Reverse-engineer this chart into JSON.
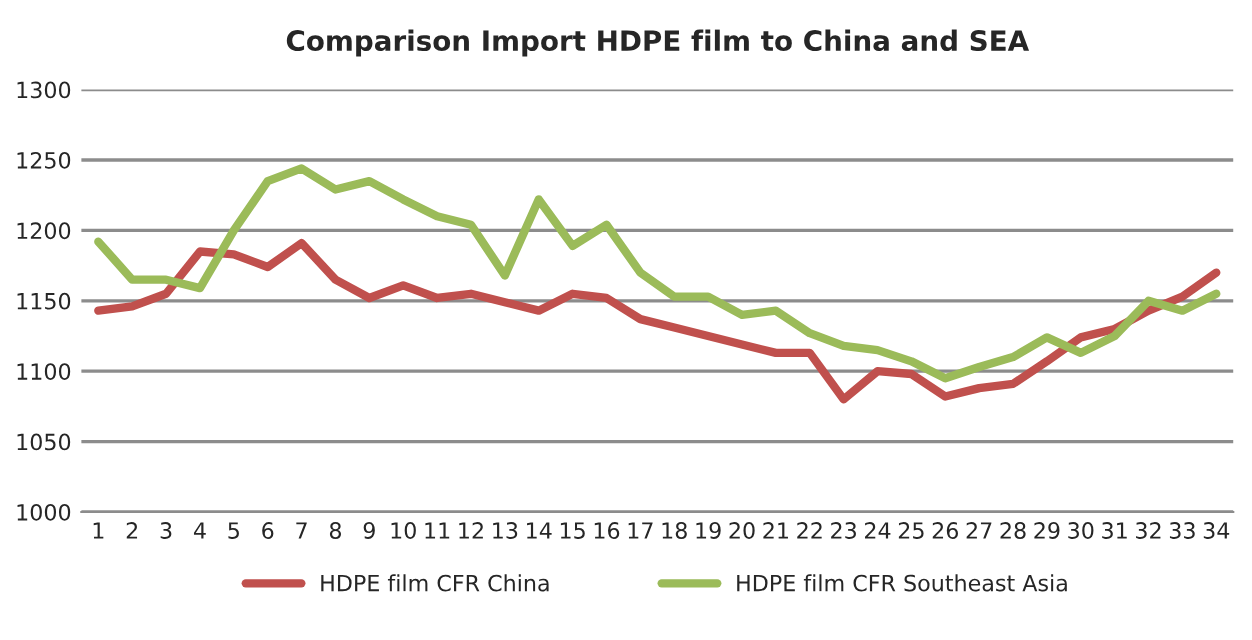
{
  "chart_data": {
    "type": "line",
    "title": "Comparison Import HDPE film to China and SEA",
    "categories": [
      "1",
      "2",
      "3",
      "4",
      "5",
      "6",
      "7",
      "8",
      "9",
      "10",
      "11",
      "12",
      "13",
      "14",
      "15",
      "16",
      "17",
      "18",
      "19",
      "20",
      "21",
      "22",
      "23",
      "24",
      "25",
      "26",
      "27",
      "28",
      "29",
      "30",
      "31",
      "32",
      "33",
      "34"
    ],
    "series": [
      {
        "name": "HDPE film CFR China",
        "color": "#c0504d",
        "values": [
          1143,
          1146,
          1155,
          1185,
          1183,
          1174,
          1191,
          1165,
          1152,
          1161,
          1152,
          1155,
          1149,
          1143,
          1155,
          1152,
          1137,
          1131,
          1125,
          1119,
          1113,
          1113,
          1080,
          1100,
          1098,
          1082,
          1088,
          1091,
          1107,
          1124,
          1130,
          1143,
          1153,
          1170
        ]
      },
      {
        "name": "HDPE film CFR Southeast Asia",
        "color": "#9bbb59",
        "values": [
          1192,
          1165,
          1165,
          1159,
          1200,
          1235,
          1244,
          1229,
          1235,
          1222,
          1210,
          1204,
          1168,
          1222,
          1189,
          1204,
          1170,
          1153,
          1153,
          1140,
          1143,
          1127,
          1118,
          1115,
          1107,
          1095,
          1103,
          1110,
          1124,
          1113,
          1125,
          1150,
          1143,
          1155
        ]
      }
    ],
    "ylim": [
      1000,
      1300
    ],
    "yticks": [
      1000,
      1050,
      1100,
      1150,
      1200,
      1250,
      1300
    ],
    "grid": "y",
    "legend": "bottom",
    "marker": "none",
    "line_style": "solid"
  }
}
